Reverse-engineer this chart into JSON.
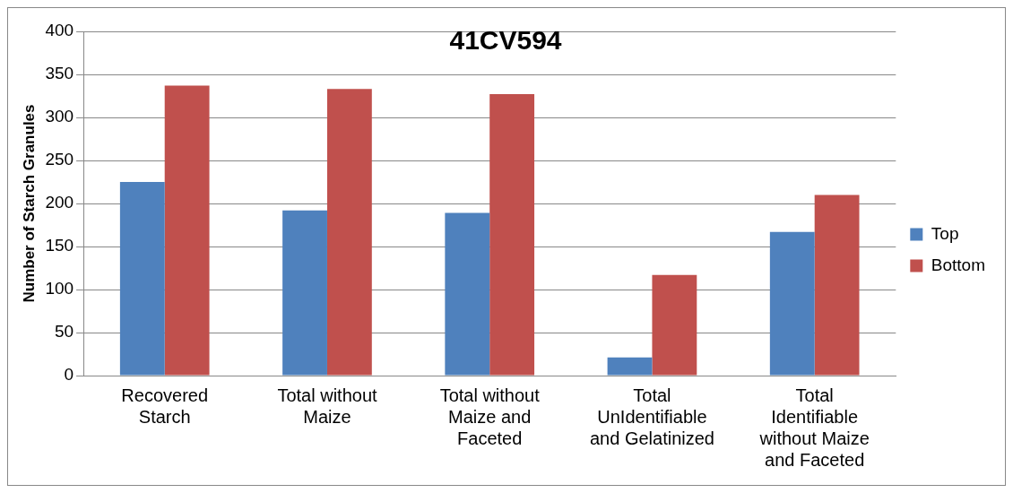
{
  "chart_data": {
    "type": "bar",
    "title": "41CV594",
    "ylabel": "Number of Starch Granules",
    "categories": [
      "Recovered Starch",
      "Total without Maize",
      "Total without Maize and Faceted",
      "Total UnIdentifiable and Gelatinized",
      "Total Identifiable without Maize and Faceted"
    ],
    "series": [
      {
        "name": "Top",
        "color": "#4f81bd",
        "values": [
          225,
          192,
          189,
          21,
          167
        ]
      },
      {
        "name": "Bottom",
        "color": "#c0504d",
        "values": [
          337,
          333,
          327,
          117,
          210
        ]
      }
    ],
    "ylim": [
      0,
      400
    ],
    "yticks": [
      0,
      50,
      100,
      150,
      200,
      250,
      300,
      350,
      400
    ],
    "grid": "y",
    "legend": "right"
  }
}
